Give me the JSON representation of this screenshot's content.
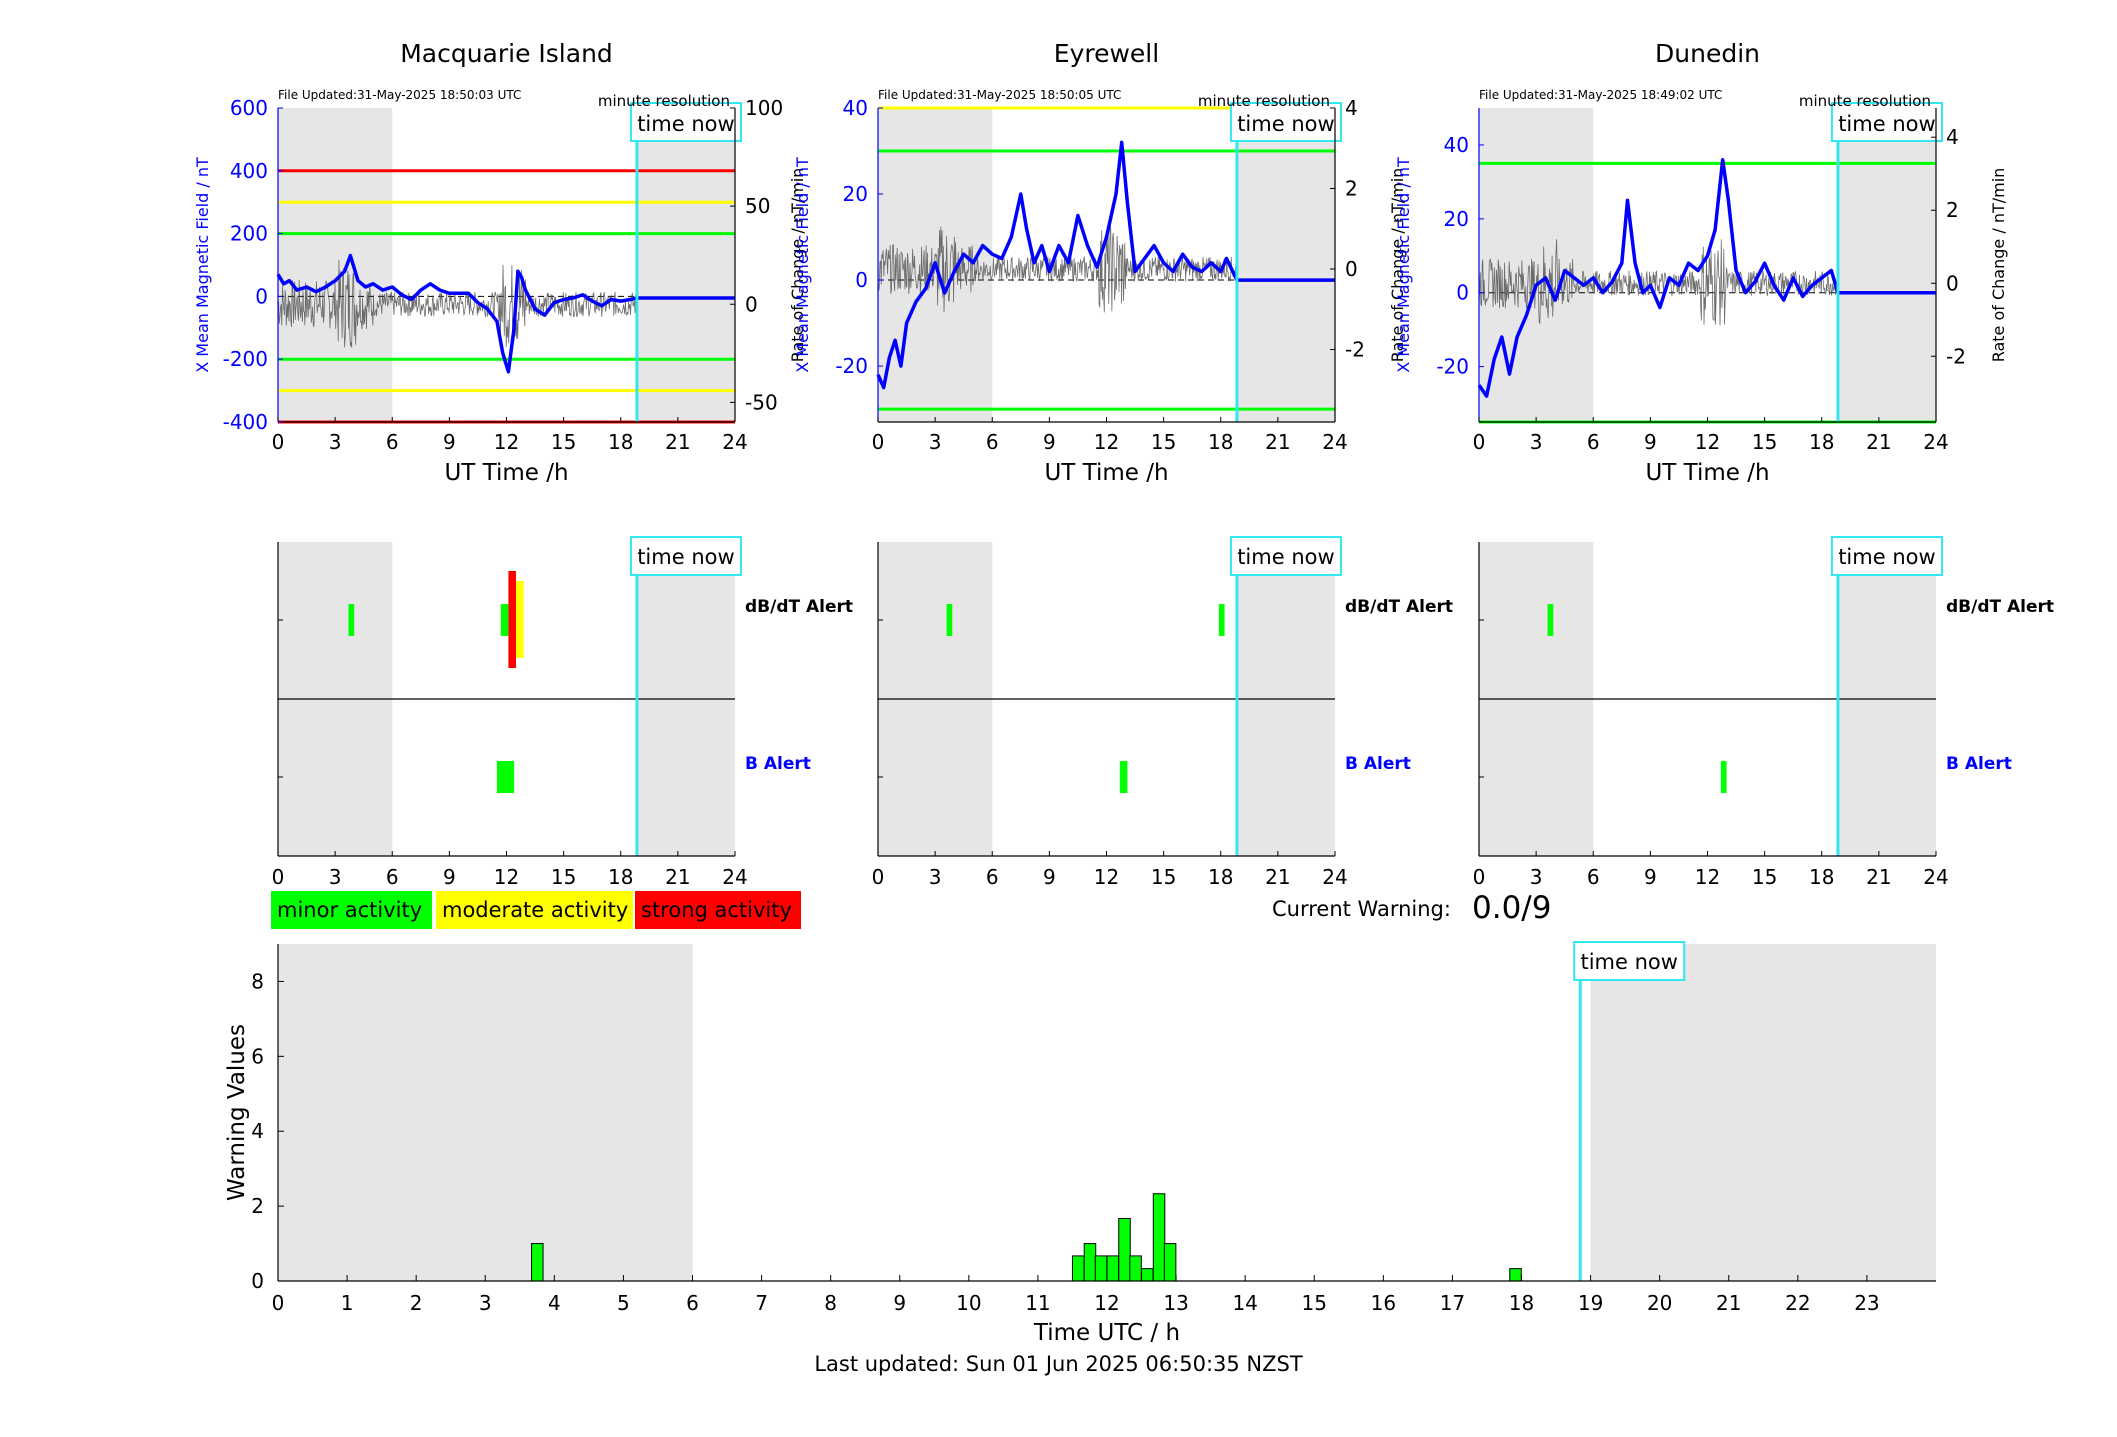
{
  "chart_data": {
    "type": "line",
    "stations": [
      {
        "title": "Macquarie Island",
        "file_updated": "File Updated:31-May-2025 18:50:03 UTC",
        "resolution": "minute resolution",
        "time_now_label": "time now",
        "time_now_h": 18.85,
        "ylabel_left": "X Mean Magnetic Field / nT",
        "ylabel_right": "Rate of Change / nT/min",
        "ylim_left": [
          -400,
          600
        ],
        "ylim_right": [
          -60,
          100
        ],
        "yticks_left": [
          -400,
          -200,
          0,
          200,
          400,
          600
        ],
        "yticks_right": [
          -50,
          0,
          50,
          100
        ],
        "thresholds_left": [
          {
            "value": 400,
            "color": "#ff0000"
          },
          {
            "value": 300,
            "color": "#ffff00"
          },
          {
            "value": 200,
            "color": "#00ff00"
          },
          {
            "value": -200,
            "color": "#00ff00"
          },
          {
            "value": -300,
            "color": "#ffff00"
          },
          {
            "value": -400,
            "color": "#ff0000"
          }
        ],
        "mean_field_nT": [
          [
            0,
            70
          ],
          [
            0.3,
            40
          ],
          [
            0.6,
            50
          ],
          [
            1,
            20
          ],
          [
            1.5,
            30
          ],
          [
            2,
            15
          ],
          [
            2.5,
            30
          ],
          [
            3,
            50
          ],
          [
            3.5,
            80
          ],
          [
            3.8,
            130
          ],
          [
            4.2,
            50
          ],
          [
            4.6,
            30
          ],
          [
            5,
            40
          ],
          [
            5.5,
            20
          ],
          [
            6,
            30
          ],
          [
            6.5,
            5
          ],
          [
            7,
            -10
          ],
          [
            7.5,
            20
          ],
          [
            8,
            40
          ],
          [
            8.5,
            20
          ],
          [
            9,
            10
          ],
          [
            10,
            10
          ],
          [
            10.5,
            -20
          ],
          [
            11,
            -40
          ],
          [
            11.5,
            -80
          ],
          [
            11.8,
            -180
          ],
          [
            12.1,
            -240
          ],
          [
            12.4,
            -100
          ],
          [
            12.6,
            80
          ],
          [
            12.8,
            60
          ],
          [
            13,
            20
          ],
          [
            13.5,
            -40
          ],
          [
            14,
            -60
          ],
          [
            14.5,
            -20
          ],
          [
            15,
            -10
          ],
          [
            15.5,
            -5
          ],
          [
            16,
            5
          ],
          [
            16.5,
            -15
          ],
          [
            17,
            -30
          ],
          [
            17.5,
            -10
          ],
          [
            18,
            -15
          ],
          [
            18.5,
            -10
          ],
          [
            18.85,
            -5
          ],
          [
            24,
            -5
          ]
        ],
        "dbdt_alerts": [
          {
            "start": 3.7,
            "end": 4.0,
            "level": "minor"
          },
          {
            "start": 11.7,
            "end": 12.1,
            "level": "minor"
          },
          {
            "start": 12.1,
            "end": 12.5,
            "level": "strong"
          },
          {
            "start": 12.5,
            "end": 12.9,
            "level": "moderate"
          }
        ],
        "b_alerts": [
          {
            "start": 11.5,
            "end": 12.4,
            "level": "minor"
          }
        ]
      },
      {
        "title": "Eyrewell",
        "file_updated": "File Updated:31-May-2025 18:50:05 UTC",
        "resolution": "minute resolution",
        "time_now_label": "time now",
        "time_now_h": 18.85,
        "ylabel_left": "X Mean Magnetic Field / nT",
        "ylabel_right": "Rate of Change / nT/min",
        "ylim_left": [
          -33,
          40
        ],
        "ylim_right": [
          -3.8,
          4
        ],
        "yticks_left": [
          -20,
          0,
          20,
          40
        ],
        "yticks_right": [
          -2,
          0,
          2,
          4
        ],
        "thresholds_left": [
          {
            "value": 40,
            "color": "#ffff00"
          },
          {
            "value": 30,
            "color": "#00ff00"
          },
          {
            "value": -30,
            "color": "#00ff00"
          }
        ],
        "mean_field_nT": [
          [
            0,
            -22
          ],
          [
            0.3,
            -25
          ],
          [
            0.6,
            -18
          ],
          [
            0.9,
            -14
          ],
          [
            1.2,
            -20
          ],
          [
            1.5,
            -10
          ],
          [
            2,
            -5
          ],
          [
            2.5,
            -2
          ],
          [
            3,
            4
          ],
          [
            3.5,
            -3
          ],
          [
            4,
            2
          ],
          [
            4.5,
            6
          ],
          [
            5,
            4
          ],
          [
            5.5,
            8
          ],
          [
            6,
            6
          ],
          [
            6.5,
            5
          ],
          [
            7,
            10
          ],
          [
            7.5,
            20
          ],
          [
            7.8,
            12
          ],
          [
            8.2,
            4
          ],
          [
            8.6,
            8
          ],
          [
            9,
            2
          ],
          [
            9.5,
            8
          ],
          [
            10,
            4
          ],
          [
            10.5,
            15
          ],
          [
            11,
            8
          ],
          [
            11.5,
            3
          ],
          [
            12,
            10
          ],
          [
            12.5,
            20
          ],
          [
            12.8,
            32
          ],
          [
            13.1,
            18
          ],
          [
            13.5,
            2
          ],
          [
            14,
            5
          ],
          [
            14.5,
            8
          ],
          [
            15,
            4
          ],
          [
            15.5,
            2
          ],
          [
            16,
            6
          ],
          [
            16.5,
            3
          ],
          [
            17,
            2
          ],
          [
            17.5,
            4
          ],
          [
            18,
            2
          ],
          [
            18.3,
            5
          ],
          [
            18.85,
            0
          ],
          [
            24,
            0
          ]
        ],
        "dbdt_alerts": [
          {
            "start": 3.6,
            "end": 3.9,
            "level": "minor"
          },
          {
            "start": 17.9,
            "end": 18.2,
            "level": "minor"
          }
        ],
        "b_alerts": [
          {
            "start": 12.7,
            "end": 13.1,
            "level": "minor"
          }
        ]
      },
      {
        "title": "Dunedin",
        "file_updated": "File Updated:31-May-2025 18:49:02 UTC",
        "resolution": "minute resolution",
        "time_now_label": "time now",
        "time_now_h": 18.85,
        "ylabel_left": "X Mean Magnetic Field / nT",
        "ylabel_right": "Rate of Change / nT/min",
        "ylim_left": [
          -35,
          50
        ],
        "ylim_right": [
          -3.8,
          4.8
        ],
        "yticks_left": [
          -20,
          0,
          20,
          40
        ],
        "yticks_right": [
          -2,
          0,
          2,
          4
        ],
        "thresholds_left": [
          {
            "value": 35,
            "color": "#00ff00"
          },
          {
            "value": -35,
            "color": "#00ff00"
          }
        ],
        "mean_field_nT": [
          [
            0,
            -25
          ],
          [
            0.4,
            -28
          ],
          [
            0.8,
            -18
          ],
          [
            1.2,
            -12
          ],
          [
            1.6,
            -22
          ],
          [
            2,
            -12
          ],
          [
            2.5,
            -6
          ],
          [
            3,
            2
          ],
          [
            3.5,
            4
          ],
          [
            4,
            -2
          ],
          [
            4.5,
            6
          ],
          [
            5,
            4
          ],
          [
            5.5,
            2
          ],
          [
            6,
            4
          ],
          [
            6.5,
            0
          ],
          [
            7,
            3
          ],
          [
            7.5,
            8
          ],
          [
            7.8,
            25
          ],
          [
            8.2,
            8
          ],
          [
            8.6,
            0
          ],
          [
            9,
            2
          ],
          [
            9.5,
            -4
          ],
          [
            10,
            4
          ],
          [
            10.5,
            2
          ],
          [
            11,
            8
          ],
          [
            11.5,
            6
          ],
          [
            12,
            10
          ],
          [
            12.4,
            17
          ],
          [
            12.8,
            36
          ],
          [
            13.1,
            25
          ],
          [
            13.5,
            6
          ],
          [
            14,
            0
          ],
          [
            14.5,
            3
          ],
          [
            15,
            8
          ],
          [
            15.5,
            2
          ],
          [
            16,
            -2
          ],
          [
            16.5,
            4
          ],
          [
            17,
            -1
          ],
          [
            17.5,
            2
          ],
          [
            18,
            4
          ],
          [
            18.5,
            6
          ],
          [
            18.85,
            0
          ],
          [
            24,
            0
          ]
        ],
        "dbdt_alerts": [
          {
            "start": 3.6,
            "end": 3.9,
            "level": "minor"
          }
        ],
        "b_alerts": [
          {
            "start": 12.7,
            "end": 13.0,
            "level": "minor"
          }
        ]
      }
    ],
    "panel_xlabel": "UT Time /h",
    "panel_xticks": [
      0,
      3,
      6,
      9,
      12,
      15,
      18,
      21,
      24
    ],
    "alert_row_labels": [
      "dB/dT Alert",
      "B Alert"
    ],
    "legend": [
      {
        "label": "minor activity",
        "color": "#00ff00"
      },
      {
        "label": "moderate activity",
        "color": "#ffff00"
      },
      {
        "label": "strong activity",
        "color": "#ff0000"
      }
    ],
    "current_warning_label": "Current Warning:",
    "current_warning_value": "0.0/9",
    "warning_chart": {
      "type": "bar",
      "xlabel": "Time UTC / h",
      "ylabel": "Warning Values",
      "xlim": [
        0,
        24
      ],
      "ylim": [
        0,
        9
      ],
      "xticks": [
        0,
        1,
        2,
        3,
        4,
        5,
        6,
        7,
        8,
        9,
        10,
        11,
        12,
        13,
        14,
        15,
        16,
        17,
        18,
        19,
        20,
        21,
        22,
        23
      ],
      "yticks": [
        0,
        2,
        4,
        6,
        8
      ],
      "time_now_label": "time now",
      "time_now_h": 18.85,
      "shade_ranges_h": [
        [
          0,
          6
        ],
        [
          19,
          24
        ]
      ],
      "bar_width_h": 0.1667,
      "bars": [
        {
          "t": 3.67,
          "value": 1.0
        },
        {
          "t": 11.5,
          "value": 0.67
        },
        {
          "t": 11.67,
          "value": 1.0
        },
        {
          "t": 11.83,
          "value": 0.67
        },
        {
          "t": 12.0,
          "value": 0.67
        },
        {
          "t": 12.17,
          "value": 1.67
        },
        {
          "t": 12.33,
          "value": 0.67
        },
        {
          "t": 12.5,
          "value": 0.33
        },
        {
          "t": 12.67,
          "value": 2.33
        },
        {
          "t": 12.83,
          "value": 1.0
        },
        {
          "t": 17.83,
          "value": 0.33
        }
      ]
    },
    "footer": "Last updated: Sun 01 Jun 2025 06:50:35 NZST"
  }
}
